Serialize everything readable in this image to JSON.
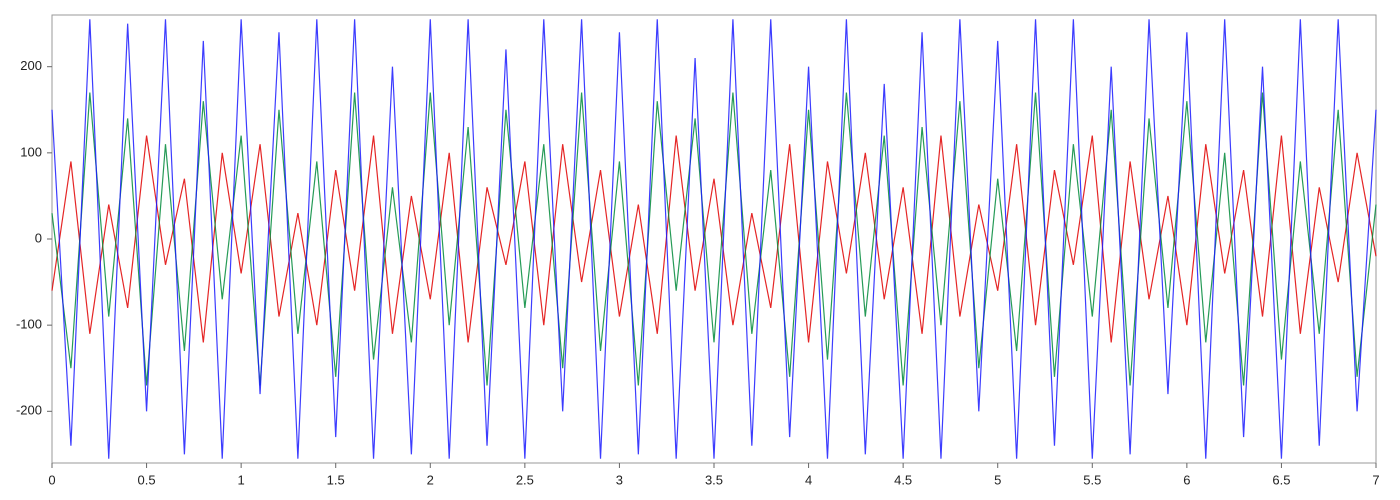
{
  "chart_data": {
    "type": "line",
    "x": [
      0,
      0.1,
      0.2,
      0.3,
      0.4,
      0.5,
      0.6,
      0.7,
      0.8,
      0.9,
      1,
      1.1,
      1.2,
      1.3,
      1.4,
      1.5,
      1.6,
      1.7,
      1.8,
      1.9,
      2,
      2.1,
      2.2,
      2.3,
      2.4,
      2.5,
      2.6,
      2.7,
      2.8,
      2.9,
      3,
      3.1,
      3.2,
      3.3,
      3.4,
      3.5,
      3.6,
      3.7,
      3.8,
      3.9,
      4,
      4.1,
      4.2,
      4.3,
      4.4,
      4.5,
      4.6,
      4.7,
      4.8,
      4.9,
      5,
      5.1,
      5.2,
      5.3,
      5.4,
      5.5,
      5.6,
      5.7,
      5.8,
      5.9,
      6,
      6.1,
      6.2,
      6.3,
      6.4,
      6.5,
      6.6,
      6.7,
      6.8,
      6.9,
      7
    ],
    "series": [
      {
        "color": "#e00000",
        "values": [
          -60,
          90,
          -110,
          40,
          -80,
          120,
          -30,
          70,
          -120,
          100,
          -40,
          110,
          -90,
          30,
          -100,
          80,
          -60,
          120,
          -110,
          50,
          -70,
          100,
          -120,
          60,
          -30,
          90,
          -100,
          110,
          -50,
          80,
          -90,
          40,
          -110,
          120,
          -60,
          70,
          -100,
          30,
          -80,
          110,
          -120,
          90,
          -40,
          100,
          -70,
          60,
          -110,
          120,
          -90,
          40,
          -60,
          110,
          -100,
          80,
          -30,
          120,
          -120,
          90,
          -70,
          50,
          -100,
          110,
          -40,
          80,
          -90,
          120,
          -110,
          60,
          -50,
          100,
          -20
        ]
      },
      {
        "color": "#008a3a",
        "values": [
          30,
          -150,
          170,
          -90,
          140,
          -170,
          110,
          -130,
          160,
          -70,
          120,
          -170,
          150,
          -110,
          90,
          -160,
          170,
          -140,
          60,
          -120,
          170,
          -100,
          130,
          -170,
          150,
          -80,
          110,
          -150,
          170,
          -130,
          90,
          -170,
          160,
          -60,
          140,
          -120,
          170,
          -110,
          80,
          -160,
          150,
          -140,
          170,
          -90,
          120,
          -170,
          130,
          -100,
          160,
          -150,
          70,
          -130,
          170,
          -160,
          110,
          -90,
          150,
          -170,
          140,
          -80,
          160,
          -120,
          100,
          -170,
          170,
          -140,
          90,
          -110,
          150,
          -160,
          40
        ]
      },
      {
        "color": "#1a1aff",
        "values": [
          150,
          -240,
          255,
          -255,
          250,
          -200,
          255,
          -250,
          230,
          -255,
          255,
          -180,
          240,
          -255,
          255,
          -230,
          255,
          -255,
          200,
          -250,
          255,
          -255,
          255,
          -240,
          220,
          -255,
          255,
          -200,
          255,
          -255,
          240,
          -250,
          255,
          -255,
          210,
          -255,
          255,
          -240,
          255,
          -230,
          200,
          -255,
          255,
          -250,
          180,
          -255,
          240,
          -255,
          255,
          -200,
          230,
          -255,
          255,
          -240,
          255,
          -255,
          200,
          -250,
          255,
          -180,
          240,
          -255,
          255,
          -230,
          200,
          -255,
          255,
          -240,
          255,
          -200,
          150
        ]
      }
    ],
    "xlim": [
      0,
      7
    ],
    "xticks": [
      0,
      0.5,
      1,
      1.5,
      2,
      2.5,
      3,
      3.5,
      4,
      4.5,
      5,
      5.5,
      6,
      6.5,
      7
    ],
    "ylim": [
      -260,
      260
    ],
    "yticks": [
      -200,
      -100,
      0,
      100,
      200
    ]
  }
}
